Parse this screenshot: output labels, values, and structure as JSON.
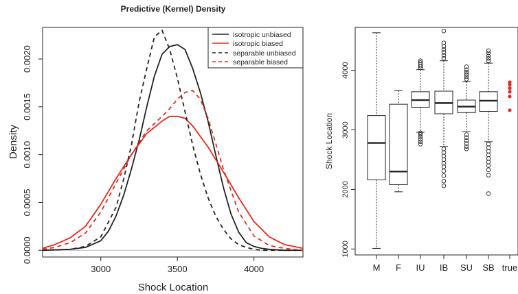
{
  "chart_data": [
    {
      "type": "line",
      "title": "Predictive (Kernel) Density",
      "xlabel": "Shock Location",
      "ylabel": "Density",
      "xlim": [
        2620,
        4320
      ],
      "ylim": [
        -7e-05,
        0.00233
      ],
      "x_ticks": [
        3000,
        3500,
        4000
      ],
      "y_ticks": [
        0.0,
        0.0005,
        0.001,
        0.0015,
        0.002
      ],
      "y_tick_labels": [
        "0.0000",
        "0.0005",
        "0.0010",
        "0.0015",
        "0.0020"
      ],
      "legend_position": "top-right",
      "series": [
        {
          "name": "isotropic unbiased",
          "color": "#222222",
          "dash": "solid",
          "x": [
            2620,
            2800,
            2900,
            3000,
            3050,
            3100,
            3150,
            3200,
            3250,
            3300,
            3350,
            3400,
            3450,
            3500,
            3550,
            3600,
            3650,
            3700,
            3750,
            3800,
            3850,
            3900,
            3950,
            4000,
            4050,
            4100,
            4200,
            4320
          ],
          "values": [
            0.0,
            1e-05,
            3e-05,
            0.0001,
            0.0002,
            0.00036,
            0.00058,
            0.00085,
            0.00115,
            0.0015,
            0.00182,
            0.00205,
            0.00213,
            0.00215,
            0.0021,
            0.0019,
            0.00165,
            0.00135,
            0.001,
            0.00066,
            0.00038,
            0.00019,
            8e-05,
            4e-05,
            2e-05,
            1e-05,
            0.0,
            0.0
          ]
        },
        {
          "name": "isotropic biased",
          "color": "#e8281c",
          "dash": "solid",
          "x": [
            2620,
            2700,
            2800,
            2900,
            3000,
            3100,
            3200,
            3300,
            3400,
            3450,
            3500,
            3550,
            3600,
            3700,
            3800,
            3900,
            4000,
            4100,
            4200,
            4320
          ],
          "values": [
            2e-05,
            6e-05,
            0.00013,
            0.00025,
            0.00048,
            0.00075,
            0.001,
            0.00122,
            0.00135,
            0.0014,
            0.0014,
            0.00138,
            0.0013,
            0.00108,
            0.00082,
            0.00055,
            0.0003,
            0.00014,
            6e-05,
            2e-05
          ]
        },
        {
          "name": "separable unbiased",
          "color": "#222222",
          "dash": "dashed",
          "x": [
            2620,
            2800,
            2900,
            3000,
            3100,
            3150,
            3200,
            3250,
            3300,
            3350,
            3400,
            3450,
            3500,
            3550,
            3600,
            3650,
            3700,
            3750,
            3800,
            3850,
            3900,
            3950,
            4000,
            4050,
            4200,
            4320
          ],
          "values": [
            0.0,
            1e-05,
            4e-05,
            0.00014,
            0.00045,
            0.00075,
            0.0011,
            0.00155,
            0.0019,
            0.00223,
            0.0023,
            0.0021,
            0.0018,
            0.00145,
            0.0011,
            0.0008,
            0.00055,
            0.00036,
            0.00022,
            0.00012,
            6e-05,
            3e-05,
            1e-05,
            0.0,
            0.0,
            0.0
          ]
        },
        {
          "name": "separable biased",
          "color": "#e8281c",
          "dash": "dashed",
          "x": [
            2620,
            2700,
            2800,
            2900,
            3000,
            3100,
            3200,
            3300,
            3400,
            3450,
            3500,
            3550,
            3600,
            3650,
            3700,
            3750,
            3800,
            3900,
            4000,
            4100,
            4200,
            4320
          ],
          "values": [
            1e-05,
            3e-05,
            8e-05,
            0.00018,
            0.0004,
            0.0007,
            0.001,
            0.00125,
            0.0014,
            0.00148,
            0.00158,
            0.00165,
            0.00167,
            0.00158,
            0.00138,
            0.00112,
            0.00085,
            0.0004,
            0.00015,
            5e-05,
            2e-05,
            0.0
          ]
        }
      ]
    },
    {
      "type": "boxplot",
      "xlabel": "",
      "ylabel": "Shock Location",
      "ylim": [
        900,
        4720
      ],
      "y_ticks": [
        1000,
        2000,
        3000,
        4000
      ],
      "categories": [
        "M",
        "F",
        "IU",
        "IB",
        "SU",
        "SB",
        "true"
      ],
      "boxes": [
        {
          "category": "M",
          "whisker_low": 1010,
          "q1": 2160,
          "median": 2780,
          "q3": 3240,
          "whisker_high": 4630,
          "outliers": []
        },
        {
          "category": "F",
          "whisker_low": 1960,
          "q1": 2080,
          "median": 2300,
          "q3": 3430,
          "whisker_high": 3660,
          "outliers": []
        },
        {
          "category": "IU",
          "whisker_low": 2960,
          "q1": 3380,
          "median": 3500,
          "q3": 3640,
          "whisker_high": 4010,
          "outliers": [
            2760,
            2800,
            2840,
            2880,
            2920,
            2950,
            4040,
            4070,
            4100,
            4130,
            4160
          ]
        },
        {
          "category": "IB",
          "whisker_low": 2720,
          "q1": 3270,
          "median": 3450,
          "q3": 3650,
          "whisker_high": 4160,
          "outliers": [
            2060,
            2140,
            2230,
            2310,
            2380,
            2440,
            2500,
            2560,
            2620,
            2680,
            4200,
            4250,
            4300,
            4350,
            4400,
            4460,
            4660
          ]
        },
        {
          "category": "SU",
          "whisker_low": 2970,
          "q1": 3290,
          "median": 3390,
          "q3": 3500,
          "whisker_high": 3810,
          "outliers": [
            2680,
            2720,
            2770,
            2820,
            2870,
            2920,
            3850,
            3890,
            3930,
            3970,
            4010,
            4060
          ]
        },
        {
          "category": "SB",
          "whisker_low": 2800,
          "q1": 3310,
          "median": 3490,
          "q3": 3640,
          "whisker_high": 4120,
          "outliers": [
            1930,
            2240,
            2330,
            2400,
            2460,
            2520,
            2580,
            2640,
            2700,
            2760,
            4160,
            4200,
            4240,
            4290,
            4330
          ]
        },
        {
          "category": "true",
          "points": [
            3330,
            3560,
            3640,
            3700,
            3760,
            3800
          ],
          "color": "#e8281c"
        }
      ]
    }
  ]
}
